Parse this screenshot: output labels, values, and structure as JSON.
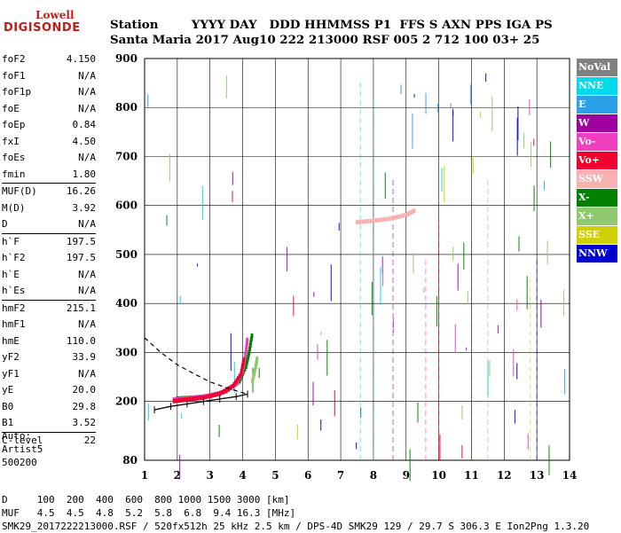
{
  "logo": {
    "top": "Lowell",
    "bottom": "DIGISONDE"
  },
  "header": {
    "line1": "Station        YYYY DAY   DDD HHMMSS P1  FFS S AXN PPS IGA PS",
    "line2": "Santa Maria 2017 Aug10 222 213000 RSF 005 2 712 100 03+ 25"
  },
  "params_groups": [
    [
      {
        "name": "foF2",
        "value": "4.150"
      },
      {
        "name": "foF1",
        "value": "N/A"
      },
      {
        "name": "foF1p",
        "value": "N/A"
      },
      {
        "name": "foE",
        "value": "N/A"
      },
      {
        "name": "foEp",
        "value": "0.84"
      },
      {
        "name": "fxI",
        "value": "4.50"
      },
      {
        "name": "foEs",
        "value": "N/A"
      },
      {
        "name": "fmin",
        "value": "1.80"
      }
    ],
    [
      {
        "name": "MUF(D)",
        "value": "16.26"
      },
      {
        "name": "M(D)",
        "value": "3.92"
      },
      {
        "name": "D",
        "value": "N/A"
      }
    ],
    [
      {
        "name": "h`F",
        "value": "197.5"
      },
      {
        "name": "h`F2",
        "value": "197.5"
      },
      {
        "name": "h`E",
        "value": "N/A"
      },
      {
        "name": "h`Es",
        "value": "N/A"
      }
    ],
    [
      {
        "name": "hmF2",
        "value": "215.1"
      },
      {
        "name": "hmF1",
        "value": "N/A"
      },
      {
        "name": "hmE",
        "value": "110.0"
      },
      {
        "name": "yF2",
        "value": "33.9"
      },
      {
        "name": "yF1",
        "value": "N/A"
      },
      {
        "name": "yE",
        "value": "20.0"
      },
      {
        "name": "B0",
        "value": "29.8"
      },
      {
        "name": "B1",
        "value": "3.52"
      }
    ],
    [
      {
        "name": "C-level",
        "value": "22"
      }
    ]
  ],
  "auto": "Auto:\nArtist5\n500200",
  "legend": [
    {
      "label": "NoVal",
      "color": "#808080"
    },
    {
      "label": "NNE",
      "color": "#00d8f0"
    },
    {
      "label": "E",
      "color": "#2aa0e8"
    },
    {
      "label": "W",
      "color": "#a000a0"
    },
    {
      "label": "Vo-",
      "color": "#f040c0"
    },
    {
      "label": "Vo+",
      "color": "#f00030"
    },
    {
      "label": "SSW",
      "color": "#f8b0b0"
    },
    {
      "label": "X-",
      "color": "#008000"
    },
    {
      "label": "X+",
      "color": "#90c870"
    },
    {
      "label": "SSE",
      "color": "#d0d000"
    },
    {
      "label": "NNW",
      "color": "#0000d0"
    }
  ],
  "footer": {
    "line1": "D     100  200  400  600  800 1000 1500 3000 [km]",
    "line2": "MUF   4.5  4.5  4.8  5.2  5.8  6.8  9.4 16.3 [MHz]",
    "line3": "SMK29_2017222213000.RSF / 520fx512h 25 kHz 2.5 km / DPS-4D SMK29 129 / 29.7 S 306.3 E Ion2Png 1.3.20"
  },
  "chart_data": {
    "type": "scatter",
    "xlim": [
      1,
      14
    ],
    "ylim": [
      80,
      900
    ],
    "xticks": [
      1,
      2,
      3,
      4,
      5,
      6,
      7,
      8,
      9,
      10,
      11,
      12,
      13,
      14
    ],
    "yticks": [
      80,
      200,
      300,
      400,
      500,
      600,
      700,
      800,
      900
    ],
    "grid": true,
    "series": [
      {
        "name": "X-",
        "color": "#008000",
        "points": [
          [
            2.0,
            205
          ],
          [
            2.5,
            207
          ],
          [
            3.0,
            210
          ],
          [
            3.5,
            220
          ],
          [
            3.9,
            240
          ],
          [
            4.1,
            270
          ],
          [
            4.2,
            300
          ],
          [
            4.3,
            340
          ]
        ]
      },
      {
        "name": "Vo-",
        "color": "#f040c0",
        "points": [
          [
            1.9,
            203
          ],
          [
            2.4,
            206
          ],
          [
            2.9,
            210
          ],
          [
            3.4,
            218
          ],
          [
            3.8,
            235
          ],
          [
            4.0,
            260
          ],
          [
            4.1,
            300
          ],
          [
            4.15,
            330
          ]
        ]
      },
      {
        "name": "Vo+",
        "color": "#f00030",
        "points": [
          [
            1.9,
            200
          ],
          [
            2.3,
            203
          ],
          [
            2.8,
            207
          ],
          [
            3.3,
            215
          ],
          [
            3.7,
            230
          ],
          [
            3.95,
            255
          ],
          [
            4.05,
            290
          ]
        ]
      },
      {
        "name": "X+",
        "color": "#90c870",
        "points": [
          [
            4.3,
            240
          ],
          [
            4.4,
            270
          ],
          [
            4.45,
            290
          ]
        ]
      },
      {
        "name": "SSW",
        "color": "#f8b0b0",
        "points": [
          [
            7.5,
            565
          ],
          [
            8.0,
            568
          ],
          [
            8.5,
            572
          ],
          [
            9.0,
            580
          ],
          [
            9.3,
            590
          ]
        ]
      }
    ],
    "model_profile": [
      [
        1.3,
        183
      ],
      [
        1.8,
        190
      ],
      [
        2.3,
        195
      ],
      [
        2.8,
        200
      ],
      [
        3.3,
        205
      ],
      [
        3.8,
        210
      ],
      [
        4.15,
        215
      ]
    ],
    "model_topside": [
      [
        1.0,
        330
      ],
      [
        1.5,
        300
      ],
      [
        2.0,
        275
      ],
      [
        2.5,
        257
      ],
      [
        3.0,
        240
      ],
      [
        3.5,
        228
      ],
      [
        4.0,
        218
      ],
      [
        4.15,
        215
      ]
    ]
  }
}
